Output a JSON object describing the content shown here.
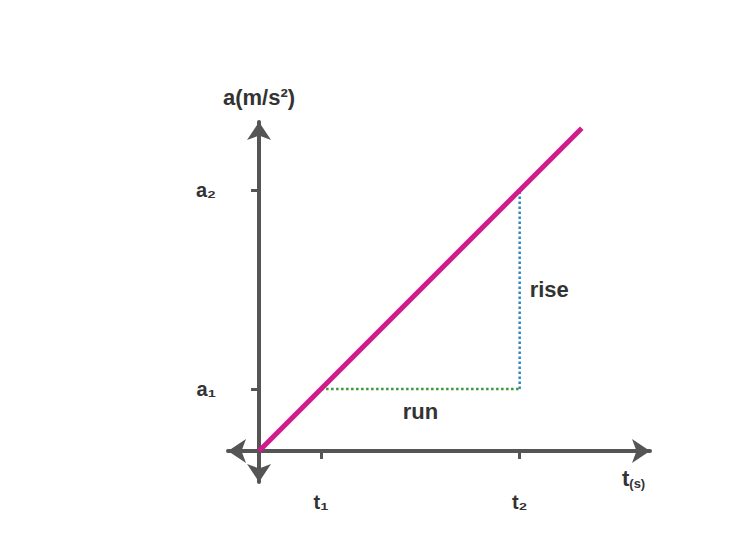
{
  "chart_data": {
    "type": "line",
    "x_label": "t(s)",
    "y_label": "a(m/s²)",
    "xlim": [
      -0.5,
      6.3
    ],
    "ylim": [
      -0.5,
      5.3
    ],
    "xticks": [
      {
        "value": 1,
        "label": "t₁"
      },
      {
        "value": 4.2,
        "label": "t₂"
      }
    ],
    "yticks": [
      {
        "value": 1,
        "label": "a₁"
      },
      {
        "value": 4.2,
        "label": "a₂"
      }
    ],
    "grid": false,
    "series": [
      {
        "color": "#d01c8b",
        "x": [
          0,
          5.2
        ],
        "values": [
          0,
          5.2
        ],
        "line_style": "solid"
      },
      {
        "name": "run",
        "color": "#3a9a3a",
        "x": [
          1,
          4.2
        ],
        "values": [
          1,
          1
        ],
        "line_style": "dotted"
      },
      {
        "name": "rise",
        "color": "#2e86c1",
        "x": [
          4.2,
          4.2
        ],
        "values": [
          1,
          4.2
        ],
        "line_style": "dotted"
      }
    ]
  }
}
